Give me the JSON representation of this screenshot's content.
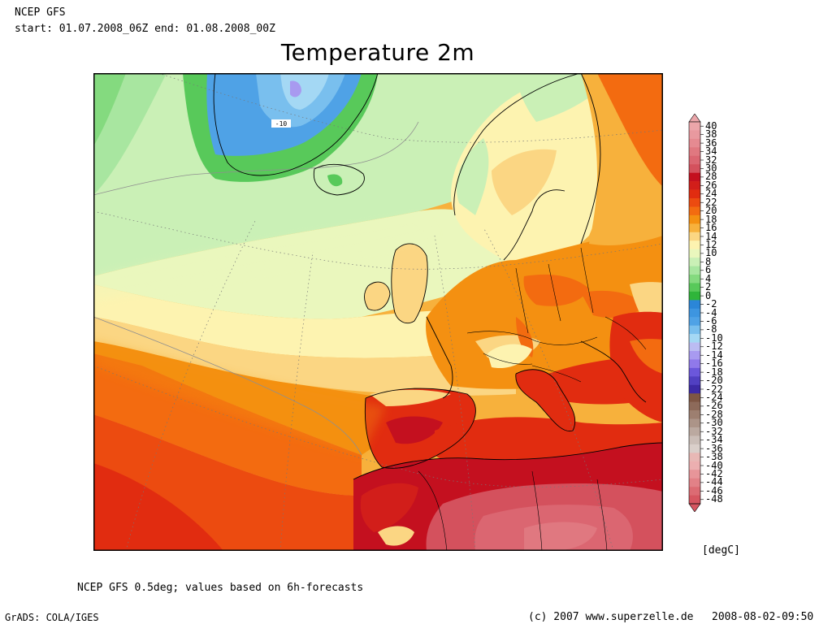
{
  "header": {
    "model": "NCEP GFS",
    "period": "start: 01.07.2008_06Z  end: 01.08.2008_00Z",
    "title": "Temperature 2m"
  },
  "map": {
    "region": "North Atlantic and Europe",
    "contour_label": "-10"
  },
  "colorbar": {
    "unit": "[degC]",
    "labels": [
      "40",
      "38",
      "36",
      "34",
      "32",
      "30",
      "28",
      "26",
      "24",
      "22",
      "20",
      "18",
      "16",
      "14",
      "12",
      "10",
      "8",
      "6",
      "4",
      "2",
      "0",
      "-2",
      "-4",
      "-6",
      "-8",
      "-10",
      "-12",
      "-14",
      "-16",
      "-18",
      "-20",
      "-22",
      "-24",
      "-26",
      "-28",
      "-30",
      "-32",
      "-34",
      "-36",
      "-38",
      "-40",
      "-42",
      "-44",
      "-46",
      "-48"
    ],
    "colors": [
      "#eba6aa",
      "#e8999f",
      "#e58a91",
      "#e07880",
      "#db6671",
      "#d4515d",
      "#c4101f",
      "#d21e1a",
      "#e12c10",
      "#ec4b10",
      "#f36b10",
      "#f49011",
      "#f7b13c",
      "#fbd683",
      "#fdf3b0",
      "#eaf7bd",
      "#caf0b6",
      "#a8e6a0",
      "#84da7f",
      "#58c95a",
      "#2fb53a",
      "#2b86d8",
      "#3d95e0",
      "#4fa2e6",
      "#79bfee",
      "#a4d8f4",
      "#bbbcf2",
      "#a89af0",
      "#9079ea",
      "#6b57db",
      "#5140c2",
      "#3d2aa6",
      "#7e5644",
      "#8d6a5a",
      "#9d7f70",
      "#ac9488",
      "#bba9a0",
      "#cbbeb8",
      "#dacfca",
      "#e8b8b5",
      "#ecafb0",
      "#e79599",
      "#e28187",
      "#dc6b73",
      "#d65660"
    ],
    "pointer_top_color": "#eba6aa",
    "pointer_bottom_color": "#d65660"
  },
  "footer": {
    "note": "NCEP GFS 0.5deg; values based on 6h-forecasts",
    "software": "GrADS: COLA/IGES",
    "copyright": "(c) 2007 www.superzelle.de",
    "timestamp": "2008-08-02-09:50"
  }
}
